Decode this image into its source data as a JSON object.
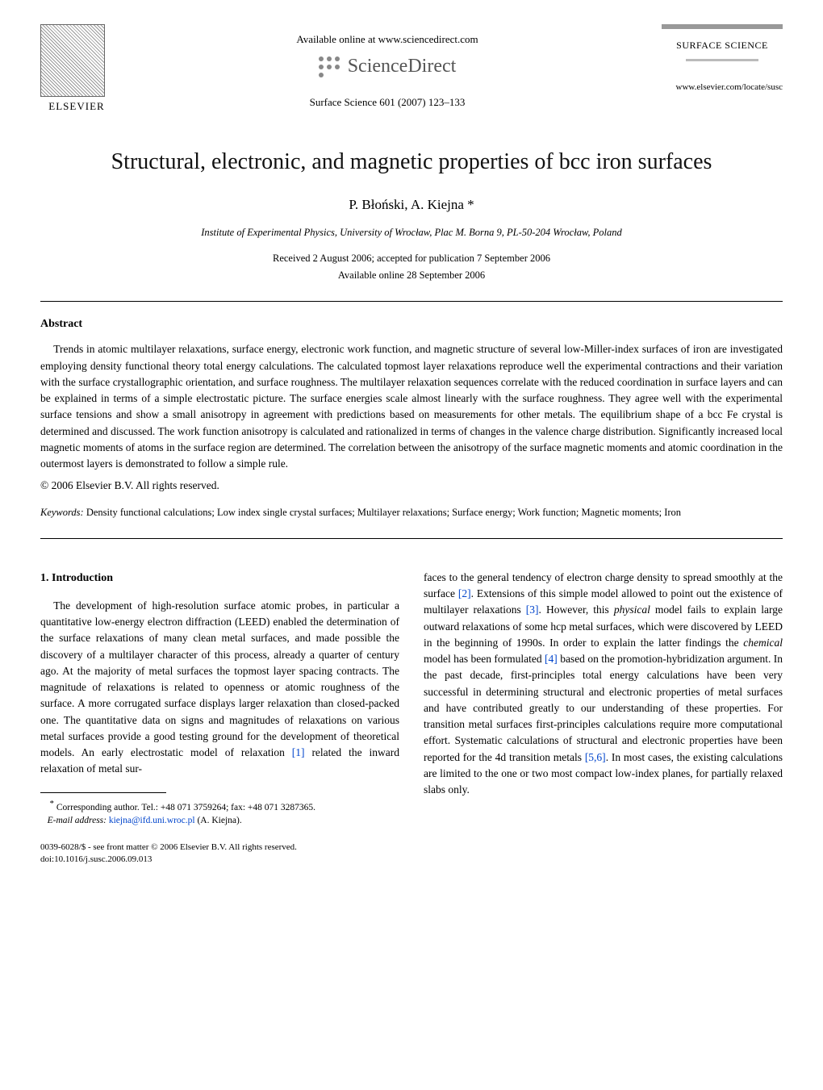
{
  "header": {
    "elsevier": "ELSEVIER",
    "available_online": "Available online at www.sciencedirect.com",
    "sciencedirect": "ScienceDirect",
    "journal_ref": "Surface Science 601 (2007) 123–133",
    "journal_box_name": "SURFACE SCIENCE",
    "locate_url": "www.elsevier.com/locate/susc"
  },
  "title": "Structural, electronic, and magnetic properties of bcc iron surfaces",
  "authors": "P. Błoński, A. Kiejna *",
  "affiliation": "Institute of Experimental Physics, University of Wrocław, Plac M. Borna 9, PL-50-204 Wrocław, Poland",
  "dates": {
    "received": "Received 2 August 2006; accepted for publication 7 September 2006",
    "online": "Available online 28 September 2006"
  },
  "abstract": {
    "heading": "Abstract",
    "text": "Trends in atomic multilayer relaxations, surface energy, electronic work function, and magnetic structure of several low-Miller-index surfaces of iron are investigated employing density functional theory total energy calculations. The calculated topmost layer relaxations reproduce well the experimental contractions and their variation with the surface crystallographic orientation, and surface roughness. The multilayer relaxation sequences correlate with the reduced coordination in surface layers and can be explained in terms of a simple electrostatic picture. The surface energies scale almost linearly with the surface roughness. They agree well with the experimental surface tensions and show a small anisotropy in agreement with predictions based on measurements for other metals. The equilibrium shape of a bcc Fe crystal is determined and discussed. The work function anisotropy is calculated and rationalized in terms of changes in the valence charge distribution. Significantly increased local magnetic moments of atoms in the surface region are determined. The correlation between the anisotropy of the surface magnetic moments and atomic coordination in the outermost layers is demonstrated to follow a simple rule.",
    "copyright": "© 2006 Elsevier B.V. All rights reserved."
  },
  "keywords": {
    "label": "Keywords:",
    "text": " Density functional calculations; Low index single crystal surfaces; Multilayer relaxations; Surface energy; Work function; Magnetic moments; Iron"
  },
  "body": {
    "section_heading": "1. Introduction",
    "col1_p1_a": "The development of high-resolution surface atomic probes, in particular a quantitative low-energy electron diffraction (LEED) enabled the determination of the surface relaxations of many clean metal surfaces, and made possible the discovery of a multilayer character of this process, already a quarter of century ago. At the majority of metal surfaces the topmost layer spacing contracts. The magnitude of relaxations is related to openness or atomic roughness of the surface. A more corrugated surface displays larger relaxation than closed-packed one. The quantitative data on signs and magnitudes of relaxations on various metal surfaces provide a good testing ground for the development of theoretical models. An early electrostatic model of relaxation ",
    "ref1": "[1]",
    "col1_p1_b": " related the inward relaxation of metal sur-",
    "col2_p1_a": "faces to the general tendency of electron charge density to spread smoothly at the surface ",
    "ref2": "[2]",
    "col2_p1_b": ". Extensions of this simple model allowed to point out the existence of multilayer relaxations ",
    "ref3": "[3]",
    "col2_p1_c": ". However, this ",
    "physical": "physical",
    "col2_p1_d": " model fails to explain large outward relaxations of some hcp metal surfaces, which were discovered by LEED in the beginning of 1990s. In order to explain the latter findings the ",
    "chemical": "chemical",
    "col2_p1_e": " model has been formulated ",
    "ref4": "[4]",
    "col2_p1_f": " based on the promotion-hybridization argument. In the past decade, first-principles total energy calculations have been very successful in determining structural and electronic properties of metal surfaces and have contributed greatly to our understanding of these properties. For transition metal surfaces first-principles calculations require more computational effort. Systematic calculations of structural and electronic properties have been reported for the 4d transition metals ",
    "ref56": "[5,6]",
    "col2_p1_g": ". In most cases, the existing calculations are limited to the one or two most compact low-index planes, for partially relaxed slabs only."
  },
  "footnote": {
    "corresponding": "Corresponding author. Tel.: +48 071 3759264; fax: +48 071 3287365.",
    "email_label": "E-mail address:",
    "email": "kiejna@ifd.uni.wroc.pl",
    "email_suffix": " (A. Kiejna)."
  },
  "doi": {
    "line1": "0039-6028/$ - see front matter © 2006 Elsevier B.V. All rights reserved.",
    "line2": "doi:10.1016/j.susc.2006.09.013"
  }
}
